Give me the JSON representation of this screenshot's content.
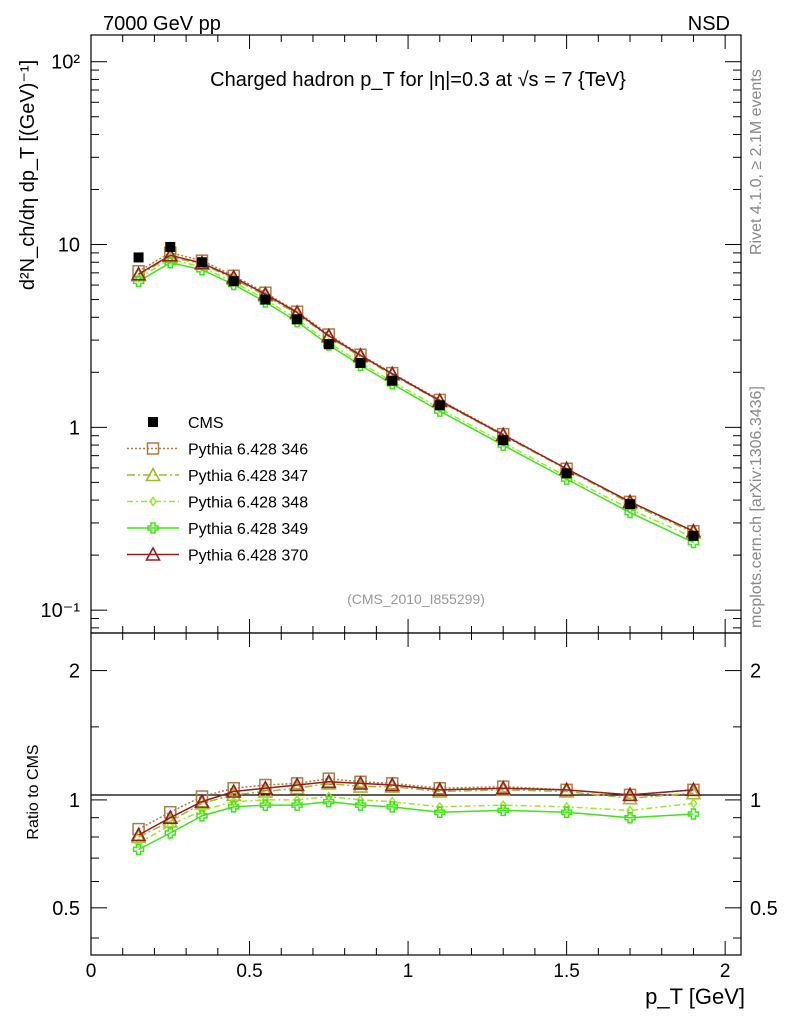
{
  "header": {
    "left": "7000 GeV pp",
    "right": "NSD"
  },
  "side_text": {
    "rivet": "Rivet 4.1.0, ≥ 2.1M events",
    "mcplots": "mcplots.cern.ch [arXiv:1306.3436]"
  },
  "chart_data": {
    "type": "line",
    "title": "Charged hadron p_T for |η|=0.3 at √s = 7 {TeV}",
    "xlabel": "p_T [GeV]",
    "ylabel": "d²N_ch/dη dp_T [(GeV)⁻¹]",
    "ratio_ylabel": "Ratio to CMS",
    "analysis_tag": "(CMS_2010_I855299)",
    "xlim": [
      0,
      2.05
    ],
    "ylim": [
      0.075,
      140
    ],
    "yscale": "log",
    "ratio_ylim": [
      0.35,
      2.4
    ],
    "x_ticks": [
      "0",
      "0.5",
      "1",
      "1.5",
      "2"
    ],
    "y_ticks": [
      "10⁻¹",
      "1",
      "10",
      "10²"
    ],
    "ratio_ticks": [
      "0.5",
      "1",
      "2"
    ],
    "legend_position": "left-middle",
    "x": [
      0.15,
      0.25,
      0.35,
      0.45,
      0.55,
      0.65,
      0.75,
      0.85,
      0.95,
      1.1,
      1.3,
      1.5,
      1.7,
      1.9
    ],
    "data": {
      "name": "CMS",
      "values": [
        8.5,
        9.7,
        8.0,
        6.3,
        5.0,
        3.9,
        2.85,
        2.25,
        1.8,
        1.32,
        0.85,
        0.56,
        0.38,
        0.255
      ]
    },
    "series": [
      {
        "name": "Pythia 6.428 346",
        "color": "#b07c3f",
        "marker": "square",
        "dash": "2,2",
        "ratio": [
          0.84,
          0.93,
          1.02,
          1.07,
          1.09,
          1.1,
          1.13,
          1.11,
          1.1,
          1.07,
          1.08,
          1.06,
          1.03,
          1.06
        ]
      },
      {
        "name": "Pythia 6.428 347",
        "color": "#a6b82a",
        "marker": "triangle",
        "dash": "8,3,2,3",
        "ratio": [
          0.8,
          0.88,
          0.98,
          1.03,
          1.05,
          1.07,
          1.1,
          1.08,
          1.08,
          1.05,
          1.06,
          1.05,
          1.01,
          1.04
        ]
      },
      {
        "name": "Pythia 6.428 348",
        "color": "#9de82a",
        "marker": "diamond",
        "dash": "6,3,2,3",
        "ratio": [
          0.77,
          0.86,
          0.94,
          0.99,
          1.0,
          1.0,
          1.02,
          1.0,
          0.99,
          0.96,
          0.97,
          0.96,
          0.94,
          0.98
        ]
      },
      {
        "name": "Pythia 6.428 349",
        "color": "#3ee619",
        "marker": "cross",
        "dash": "",
        "ratio": [
          0.74,
          0.82,
          0.91,
          0.96,
          0.97,
          0.97,
          0.99,
          0.97,
          0.96,
          0.93,
          0.94,
          0.93,
          0.9,
          0.92
        ]
      },
      {
        "name": "Pythia 6.428 370",
        "color": "#9b1b21",
        "marker": "triangle",
        "dash": "",
        "ratio": [
          0.81,
          0.9,
          0.99,
          1.05,
          1.07,
          1.09,
          1.11,
          1.1,
          1.09,
          1.06,
          1.07,
          1.06,
          1.03,
          1.06
        ]
      }
    ]
  }
}
